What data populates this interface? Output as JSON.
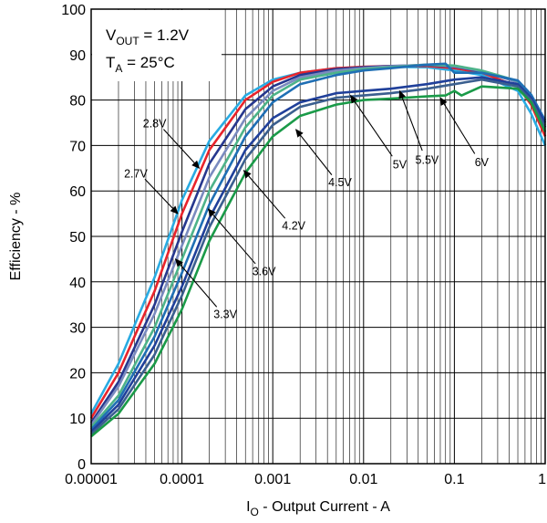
{
  "chart_data": {
    "type": "line",
    "title": "",
    "xlabel": {
      "main": "I",
      "sub": "O",
      "rest": " - Output Current - A"
    },
    "ylabel": "Efficiency - %",
    "xscale": "log",
    "xlim": [
      1e-05,
      1
    ],
    "ylim": [
      0,
      100
    ],
    "grid": true,
    "x_ticks": [
      1e-05,
      0.0001,
      0.001,
      0.01,
      0.1,
      1
    ],
    "x_tick_labels": [
      "0.00001",
      "0.0001",
      "0.001",
      "0.01",
      "0.1",
      "1"
    ],
    "y_ticks": [
      0,
      10,
      20,
      30,
      40,
      50,
      60,
      70,
      80,
      90,
      100
    ],
    "y_tick_labels": [
      "0",
      "10",
      "20",
      "30",
      "40",
      "50",
      "60",
      "70",
      "80",
      "90",
      "100"
    ],
    "conditions": [
      {
        "main": "V",
        "sub": "OUT",
        "rest": " = 1.2V"
      },
      {
        "main": "T",
        "sub": "A",
        "rest": " = 25°C"
      }
    ],
    "series": [
      {
        "name": "2.7V",
        "color": "#29abe2",
        "points": [
          [
            1e-05,
            11
          ],
          [
            2e-05,
            22
          ],
          [
            5e-05,
            41
          ],
          [
            0.0001,
            58
          ],
          [
            0.0002,
            71
          ],
          [
            0.0005,
            81
          ],
          [
            0.001,
            84.5
          ],
          [
            0.002,
            86
          ],
          [
            0.005,
            87
          ],
          [
            0.01,
            87.2
          ],
          [
            0.02,
            87.3
          ],
          [
            0.05,
            87.2
          ],
          [
            0.1,
            86.5
          ],
          [
            0.2,
            85.5
          ],
          [
            0.5,
            82
          ],
          [
            0.7,
            77
          ],
          [
            1,
            70
          ]
        ]
      },
      {
        "name": "2.8V",
        "color": "#e8242b",
        "points": [
          [
            1e-05,
            10
          ],
          [
            2e-05,
            20
          ],
          [
            5e-05,
            38
          ],
          [
            0.0001,
            55
          ],
          [
            0.0002,
            69
          ],
          [
            0.0005,
            80
          ],
          [
            0.001,
            84
          ],
          [
            0.002,
            86
          ],
          [
            0.005,
            87
          ],
          [
            0.01,
            87.3
          ],
          [
            0.02,
            87.5
          ],
          [
            0.05,
            87.5
          ],
          [
            0.1,
            87
          ],
          [
            0.2,
            86
          ],
          [
            0.5,
            83
          ],
          [
            0.7,
            79
          ],
          [
            1,
            72
          ]
        ]
      },
      {
        "name": "3.3V",
        "color": "#26378e",
        "points": [
          [
            1e-05,
            9
          ],
          [
            2e-05,
            18
          ],
          [
            5e-05,
            35
          ],
          [
            0.0001,
            51
          ],
          [
            0.0002,
            66
          ],
          [
            0.0005,
            78
          ],
          [
            0.001,
            83
          ],
          [
            0.002,
            85.5
          ],
          [
            0.005,
            86.8
          ],
          [
            0.01,
            87.2
          ],
          [
            0.02,
            87.5
          ],
          [
            0.05,
            87.7
          ],
          [
            0.1,
            87.3
          ],
          [
            0.2,
            86.3
          ],
          [
            0.5,
            84
          ],
          [
            0.7,
            80
          ],
          [
            1,
            74
          ]
        ]
      },
      {
        "name": "3.6V",
        "color": "#7a8bbf",
        "points": [
          [
            1e-05,
            8.5
          ],
          [
            2e-05,
            17
          ],
          [
            5e-05,
            33
          ],
          [
            0.0001,
            48
          ],
          [
            0.0002,
            63
          ],
          [
            0.0005,
            76
          ],
          [
            0.001,
            82
          ],
          [
            0.002,
            85
          ],
          [
            0.005,
            86.5
          ],
          [
            0.01,
            87
          ],
          [
            0.02,
            87.4
          ],
          [
            0.05,
            87.8
          ],
          [
            0.1,
            87.4
          ],
          [
            0.2,
            86.4
          ],
          [
            0.5,
            84
          ],
          [
            0.7,
            80.5
          ],
          [
            1,
            74.5
          ]
        ]
      },
      {
        "name": "4.2V",
        "color": "#4db389",
        "points": [
          [
            1e-05,
            8
          ],
          [
            2e-05,
            15
          ],
          [
            5e-05,
            30
          ],
          [
            0.0001,
            45
          ],
          [
            0.0002,
            60
          ],
          [
            0.0005,
            74
          ],
          [
            0.001,
            81
          ],
          [
            0.002,
            84.5
          ],
          [
            0.005,
            86
          ],
          [
            0.01,
            86.8
          ],
          [
            0.02,
            87.2
          ],
          [
            0.05,
            87.8
          ],
          [
            0.1,
            87.6
          ],
          [
            0.2,
            86.5
          ],
          [
            0.5,
            84.2
          ],
          [
            0.7,
            81
          ],
          [
            1,
            75
          ]
        ]
      },
      {
        "name": "4.5V",
        "color": "#1f6fb4",
        "points": [
          [
            1e-05,
            7.5
          ],
          [
            2e-05,
            14
          ],
          [
            5e-05,
            28
          ],
          [
            0.0001,
            42
          ],
          [
            0.0002,
            57
          ],
          [
            0.0005,
            72
          ],
          [
            0.001,
            79.5
          ],
          [
            0.002,
            83.5
          ],
          [
            0.005,
            85.5
          ],
          [
            0.01,
            86.5
          ],
          [
            0.02,
            87
          ],
          [
            0.05,
            87.8
          ],
          [
            0.08,
            88
          ],
          [
            0.1,
            86
          ],
          [
            0.2,
            86
          ],
          [
            0.5,
            84.3
          ],
          [
            0.7,
            81.2
          ],
          [
            1,
            75.5
          ]
        ]
      },
      {
        "name": "5V",
        "color": "#20409a",
        "points": [
          [
            1e-05,
            7
          ],
          [
            2e-05,
            13
          ],
          [
            5e-05,
            26
          ],
          [
            0.0001,
            39
          ],
          [
            0.0002,
            54
          ],
          [
            0.0005,
            69
          ],
          [
            0.001,
            76
          ],
          [
            0.002,
            79.5
          ],
          [
            0.005,
            81.5
          ],
          [
            0.01,
            82
          ],
          [
            0.02,
            82.5
          ],
          [
            0.05,
            83.5
          ],
          [
            0.1,
            84.5
          ],
          [
            0.2,
            85
          ],
          [
            0.5,
            83.5
          ],
          [
            0.7,
            80.5
          ],
          [
            1,
            75
          ]
        ]
      },
      {
        "name": "5.5V",
        "color": "#3b5f8f",
        "points": [
          [
            1e-05,
            6.5
          ],
          [
            2e-05,
            12
          ],
          [
            5e-05,
            24
          ],
          [
            0.0001,
            37
          ],
          [
            0.0002,
            52
          ],
          [
            0.0005,
            67
          ],
          [
            0.001,
            74.5
          ],
          [
            0.002,
            78.5
          ],
          [
            0.005,
            80.5
          ],
          [
            0.01,
            81
          ],
          [
            0.02,
            81.5
          ],
          [
            0.05,
            82.5
          ],
          [
            0.1,
            83.5
          ],
          [
            0.2,
            84.5
          ],
          [
            0.5,
            83
          ],
          [
            0.7,
            80
          ],
          [
            1,
            74
          ]
        ]
      },
      {
        "name": "6V",
        "color": "#1a9a48",
        "points": [
          [
            1e-05,
            6
          ],
          [
            2e-05,
            11
          ],
          [
            5e-05,
            22
          ],
          [
            0.0001,
            34
          ],
          [
            0.0002,
            49
          ],
          [
            0.0005,
            64
          ],
          [
            0.001,
            72
          ],
          [
            0.002,
            76.5
          ],
          [
            0.005,
            79
          ],
          [
            0.01,
            80
          ],
          [
            0.02,
            80.3
          ],
          [
            0.05,
            80.8
          ],
          [
            0.08,
            81
          ],
          [
            0.1,
            82
          ],
          [
            0.12,
            81
          ],
          [
            0.2,
            83
          ],
          [
            0.5,
            82.5
          ],
          [
            0.7,
            79.5
          ],
          [
            1,
            73
          ]
        ]
      }
    ],
    "annotations": [
      {
        "label": "2.8V",
        "text_xy": [
          5e-05,
          75
        ],
        "arrow_to": [
          0.000155,
          65
        ]
      },
      {
        "label": "2.7V",
        "text_xy": [
          3.1e-05,
          64
        ],
        "arrow_to": [
          9e-05,
          55
        ]
      },
      {
        "label": "4.5V",
        "text_xy": [
          0.0055,
          62
        ],
        "arrow_to": [
          0.0018,
          73.5
        ]
      },
      {
        "label": "4.2V",
        "text_xy": [
          0.0017,
          52.5
        ],
        "arrow_to": [
          0.00048,
          64.5
        ]
      },
      {
        "label": "3.6V",
        "text_xy": [
          0.0008,
          42.5
        ],
        "arrow_to": [
          0.000195,
          56
        ]
      },
      {
        "label": "3.3V",
        "text_xy": [
          0.0003,
          33
        ],
        "arrow_to": [
          8.5e-05,
          45
        ]
      },
      {
        "label": "5V",
        "text_xy": [
          0.025,
          66
        ],
        "arrow_to": [
          0.0072,
          81
        ]
      },
      {
        "label": "5.5V",
        "text_xy": [
          0.05,
          67
        ],
        "arrow_to": [
          0.025,
          82
        ]
      },
      {
        "label": "6V",
        "text_xy": [
          0.2,
          66.5
        ],
        "arrow_to": [
          0.07,
          80.5
        ]
      }
    ]
  }
}
